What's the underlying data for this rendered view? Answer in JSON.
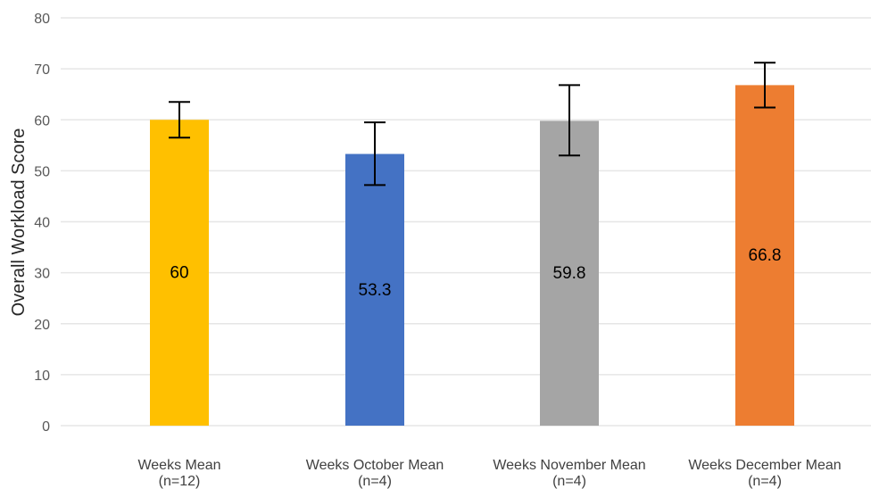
{
  "chart_data": {
    "type": "bar",
    "ylabel": "Overall Workload Score",
    "xlabel": "",
    "ylim": [
      0,
      80
    ],
    "yticks": [
      0,
      10,
      20,
      30,
      40,
      50,
      60,
      70,
      80
    ],
    "grid": true,
    "categories": [
      [
        "Weeks Mean",
        "(n=12)"
      ],
      [
        "Weeks October Mean",
        "(n=4)"
      ],
      [
        "Weeks November Mean",
        "(n=4)"
      ],
      [
        "Weeks December Mean",
        "(n=4)"
      ]
    ],
    "values": [
      60,
      53.3,
      59.8,
      66.8
    ],
    "data_labels": [
      "60",
      "53.3",
      "59.8",
      "66.8"
    ],
    "error_low": [
      56.5,
      47.2,
      53.0,
      62.4
    ],
    "error_high": [
      63.5,
      59.5,
      66.8,
      71.2
    ],
    "colors": [
      "#FFC000",
      "#4472C4",
      "#A5A5A5",
      "#ED7D31"
    ]
  }
}
